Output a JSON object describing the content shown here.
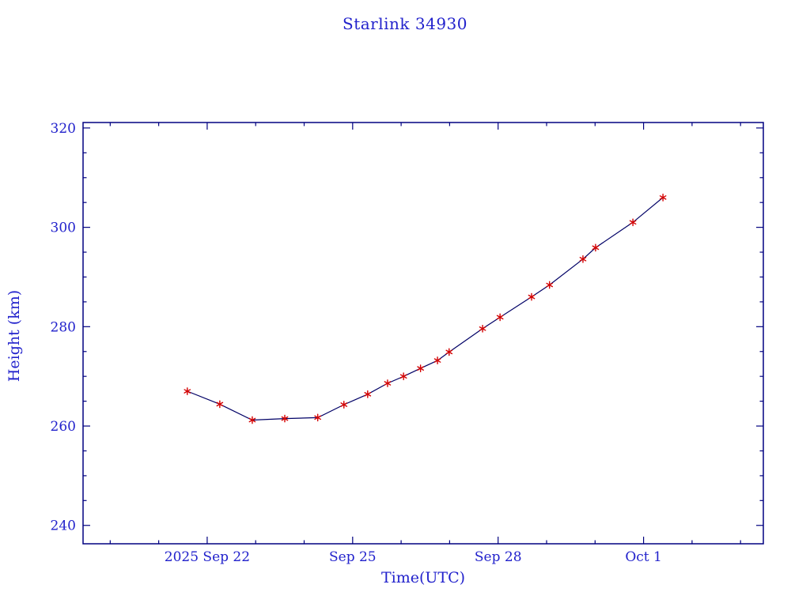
{
  "page": {
    "background": "#ffffff"
  },
  "chart_data": {
    "type": "line",
    "title": "Starlink 34930",
    "xlabel": "Time(UTC)",
    "ylabel": "Height (km)",
    "x_unit": "days since 2025 Sep 22 00:00 UTC",
    "x_range": [
      -2.56,
      11.47
    ],
    "y_range": [
      236.3,
      321.1
    ],
    "x_major_ticks": [
      {
        "t": 0,
        "label": "2025 Sep 22"
      },
      {
        "t": 3,
        "label": "Sep 25"
      },
      {
        "t": 6,
        "label": "Sep 28"
      },
      {
        "t": 9,
        "label": "Oct 1"
      }
    ],
    "x_minor_step": 1,
    "y_major_ticks": [
      {
        "v": 240,
        "label": "240"
      },
      {
        "v": 260,
        "label": "260"
      },
      {
        "v": 280,
        "label": "280"
      },
      {
        "v": 300,
        "label": "300"
      },
      {
        "v": 320,
        "label": "320"
      }
    ],
    "y_minor_step": 5,
    "series": [
      {
        "name": "height",
        "marker": "asterisk",
        "points": [
          {
            "t": -0.41,
            "h": 267.0
          },
          {
            "t": 0.26,
            "h": 264.4
          },
          {
            "t": 0.93,
            "h": 261.2
          },
          {
            "t": 1.6,
            "h": 261.5
          },
          {
            "t": 2.28,
            "h": 261.7
          },
          {
            "t": 2.82,
            "h": 264.3
          },
          {
            "t": 3.31,
            "h": 266.4
          },
          {
            "t": 3.72,
            "h": 268.6
          },
          {
            "t": 4.05,
            "h": 270.0
          },
          {
            "t": 4.4,
            "h": 271.6
          },
          {
            "t": 4.75,
            "h": 273.2
          },
          {
            "t": 4.99,
            "h": 274.9
          },
          {
            "t": 5.68,
            "h": 279.6
          },
          {
            "t": 6.04,
            "h": 281.9
          },
          {
            "t": 6.69,
            "h": 286.0
          },
          {
            "t": 7.06,
            "h": 288.4
          },
          {
            "t": 7.75,
            "h": 293.6
          },
          {
            "t": 8.01,
            "h": 295.9
          },
          {
            "t": 8.78,
            "h": 301.0
          },
          {
            "t": 9.4,
            "h": 306.0
          }
        ]
      }
    ],
    "legend": null,
    "grid": false,
    "colors": {
      "text": "#2222cc",
      "frame": "#000080",
      "line": "#000066",
      "marker": "#d40000"
    }
  }
}
